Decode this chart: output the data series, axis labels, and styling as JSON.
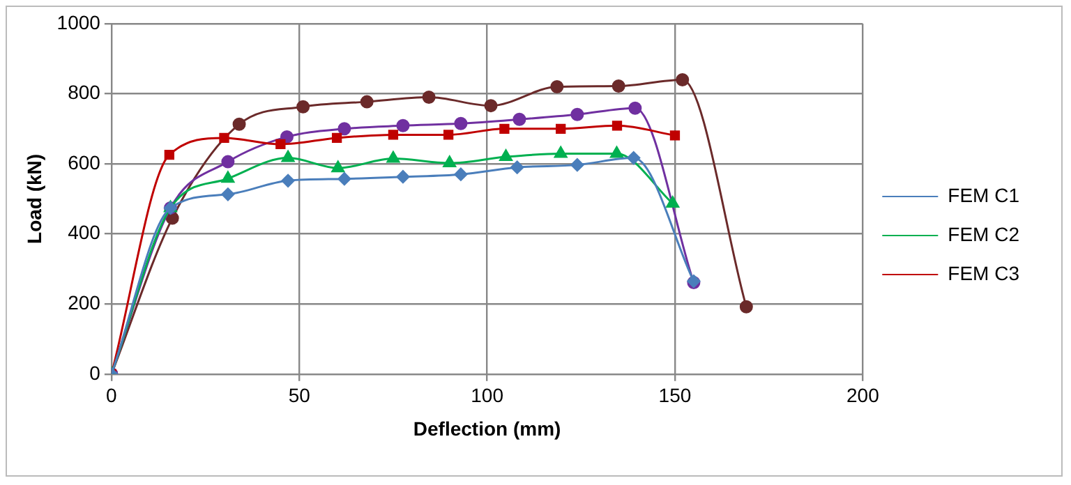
{
  "chart_data": {
    "type": "line",
    "xlabel": "Deflection (mm)",
    "ylabel": "Load (kN)",
    "xlim": [
      0,
      200
    ],
    "xticks": [
      0,
      50,
      100,
      150,
      200
    ],
    "ylim": [
      0,
      1000
    ],
    "yticks": [
      0,
      200,
      400,
      600,
      800,
      1000
    ],
    "grid": true,
    "legend": "right",
    "series": [
      {
        "name": "FEM C1",
        "color": "#4a7ebb",
        "marker": "diamond",
        "x": [
          0,
          15.7,
          31,
          47,
          62,
          77.6,
          93,
          108,
          124,
          139,
          155
        ],
        "values": [
          0,
          474,
          513,
          552,
          557,
          563,
          570,
          590,
          597,
          617,
          265
        ]
      },
      {
        "name": "FEM C2",
        "color": "#00b050",
        "marker": "triangle",
        "x": [
          0,
          15.7,
          31,
          47,
          60.3,
          75,
          90,
          105,
          119.6,
          134.5,
          149.4
        ],
        "values": [
          0,
          474,
          558,
          617,
          588,
          615,
          602,
          620,
          629,
          629,
          487
        ]
      },
      {
        "name": "FEM C3",
        "color": "#c00000",
        "marker": "square",
        "x": [
          0,
          15.4,
          30,
          45,
          60,
          75,
          89.7,
          104.6,
          119.6,
          134.6,
          150
        ],
        "values": [
          0,
          626,
          674,
          656,
          674,
          683,
          683,
          700,
          700,
          709,
          681
        ]
      },
      {
        "color": "#7030a0",
        "marker": "circle",
        "x": [
          0,
          15.7,
          31,
          46.7,
          62,
          77.6,
          93,
          108.6,
          124,
          139.4,
          155
        ],
        "values": [
          0,
          474,
          606,
          677,
          700,
          709,
          715,
          727,
          741,
          759,
          261
        ]
      },
      {
        "color": "#6b2a2a",
        "marker": "circle",
        "x": [
          0,
          16.2,
          34,
          51,
          68,
          84.5,
          101,
          118.6,
          135,
          152,
          169
        ],
        "values": [
          0,
          445,
          713,
          763,
          777,
          790,
          766,
          820,
          822,
          840,
          192
        ]
      }
    ]
  }
}
